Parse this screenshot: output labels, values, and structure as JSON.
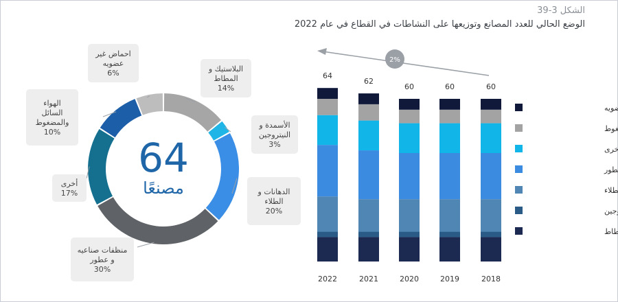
{
  "figure": {
    "number": "الشكل 3-39",
    "title": "الوضع الحالي للعدد المصانع وتوزيعها على النشاطات في القطاع في عام 2022"
  },
  "chart_data": [
    {
      "type": "pie",
      "subtype": "donut",
      "center_value": "64",
      "center_label": "مصنعًا",
      "slices": [
        {
          "key": "plastic",
          "label_lines": [
            "البلاستيك و",
            "المطاط"
          ],
          "pct_text": "14%",
          "value": 14,
          "color": "#a6a6a6"
        },
        {
          "key": "fert",
          "label_lines": [
            "الأسمدة و",
            "النيتروجين"
          ],
          "pct_text": "3%",
          "value": 3,
          "color": "#1fb5e6"
        },
        {
          "key": "paint",
          "label_lines": [
            "الدهانات و",
            "الطلاء"
          ],
          "pct_text": "20%",
          "value": 20,
          "color": "#3a8ee6"
        },
        {
          "key": "cleaning",
          "label_lines": [
            "منظفات صناعيه",
            "و عطور"
          ],
          "pct_text": "30%",
          "value": 30,
          "color": "#5f6266"
        },
        {
          "key": "other",
          "label_lines": [
            "أخرى"
          ],
          "pct_text": "17%",
          "value": 17,
          "color": "#15708f"
        },
        {
          "key": "gases",
          "label_lines": [
            "الهواء",
            "السائل",
            "والمضغوط"
          ],
          "pct_text": "10%",
          "value": 10,
          "color": "#1d5ea8"
        },
        {
          "key": "acids",
          "label_lines": [
            "احماض غير",
            "عضويه"
          ],
          "pct_text": "6%",
          "value": 6,
          "color": "#bdbdbd"
        }
      ]
    },
    {
      "type": "bar",
      "stacked": true,
      "categories": [
        "2022",
        "2021",
        "2020",
        "2019",
        "2018"
      ],
      "totals": [
        64,
        62,
        60,
        60,
        60
      ],
      "growth_label": "2%",
      "series": [
        {
          "name": "البلاستيك و المطاط",
          "color": "#1c2a52",
          "values": [
            9,
            9,
            9,
            9,
            9
          ]
        },
        {
          "name": "الأسمدة و النيتروجين",
          "color": "#2a5a86",
          "values": [
            2,
            2,
            2,
            2,
            2
          ]
        },
        {
          "name": "الدهانات و الطلاء",
          "color": "#4f86b3",
          "values": [
            13,
            12,
            12,
            12,
            12
          ]
        },
        {
          "name": "منظفات صناعيه و عطور",
          "color": "#3b8be0",
          "values": [
            19,
            18,
            17,
            17,
            17
          ]
        },
        {
          "name": "أخرى",
          "color": "#12b5e8",
          "values": [
            11,
            11,
            11,
            11,
            11
          ]
        },
        {
          "name": "الهواء السائل والمضغوط",
          "color": "#a3a3a3",
          "values": [
            6,
            6,
            5,
            5,
            5
          ]
        },
        {
          "name": "احماض غير عضويه",
          "color": "#10193a",
          "values": [
            4,
            4,
            4,
            4,
            4
          ]
        }
      ],
      "legend_order": [
        "احماض غير عضويه",
        "الهواء السائل والمضغوط",
        "أخرى",
        "منظفات صناعيه و عطور",
        "الدهانات و الطلاء",
        "الأسمدة و النيتروجين",
        "البلاستيك و المطاط"
      ]
    }
  ]
}
